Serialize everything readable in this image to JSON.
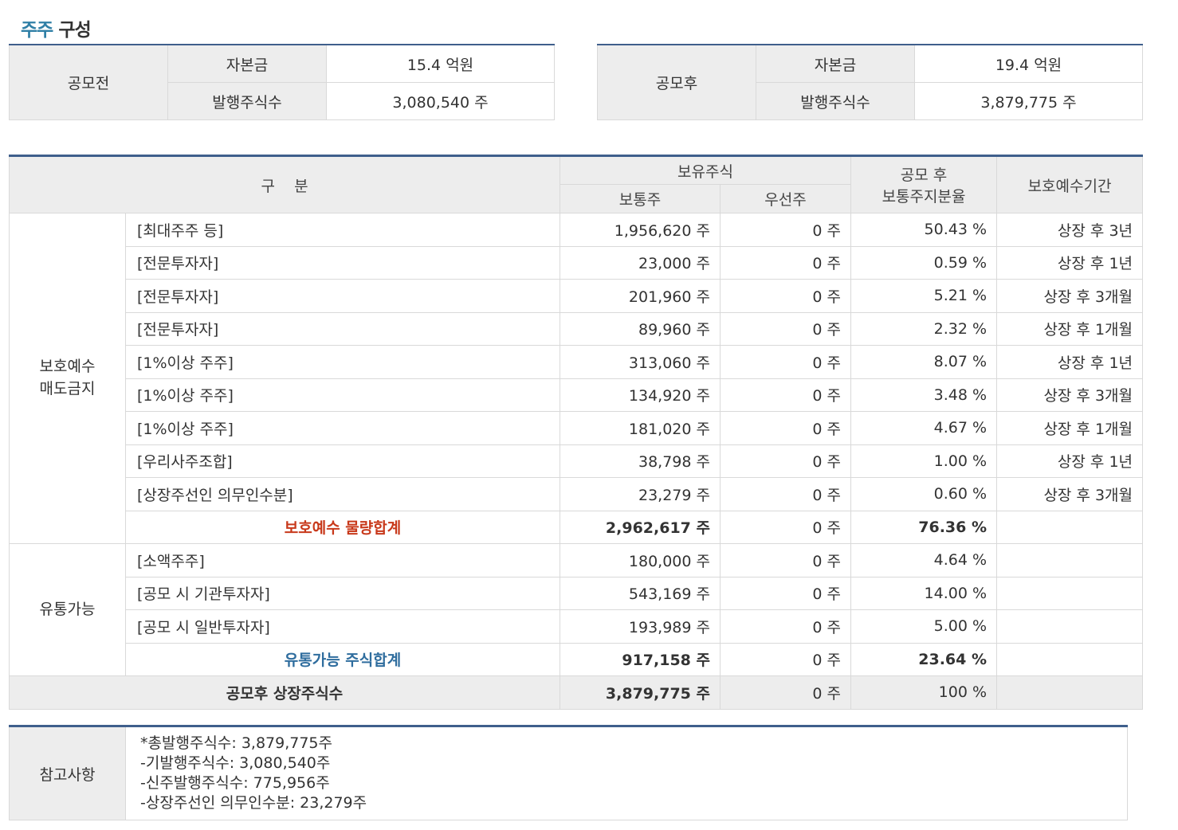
{
  "title": {
    "accent": "주주",
    "rest": " 구성"
  },
  "pre_offering": {
    "label": "공모전",
    "capital_label": "자본금",
    "capital_value": "15.4 억원",
    "shares_label": "발행주식수",
    "shares_value": "3,080,540 주"
  },
  "post_offering": {
    "label": "공모후",
    "capital_label": "자본금",
    "capital_value": "19.4 억원",
    "shares_label": "발행주식수",
    "shares_value": "3,879,775 주"
  },
  "main_table": {
    "headers": {
      "category": "구    분",
      "holdings": "보유주식",
      "common": "보통주",
      "preferred": "우선주",
      "ratio_line1": "공모 후",
      "ratio_line2": "보통주지분율",
      "lockup": "보호예수기간"
    },
    "lockup_group": {
      "label_line1": "보호예수",
      "label_line2": "매도금지",
      "rows": [
        {
          "name": "[최대주주 등]",
          "common": "1,956,620 주",
          "preferred": "0 주",
          "ratio": "50.43 %",
          "period": "상장 후 3년"
        },
        {
          "name": "[전문투자자]",
          "common": "23,000 주",
          "preferred": "0 주",
          "ratio": "0.59 %",
          "period": "상장 후 1년"
        },
        {
          "name": "[전문투자자]",
          "common": "201,960 주",
          "preferred": "0 주",
          "ratio": "5.21 %",
          "period": "상장 후 3개월"
        },
        {
          "name": "[전문투자자]",
          "common": "89,960 주",
          "preferred": "0 주",
          "ratio": "2.32 %",
          "period": "상장 후 1개월"
        },
        {
          "name": "[1%이상 주주]",
          "common": "313,060 주",
          "preferred": "0 주",
          "ratio": "8.07 %",
          "period": "상장 후 1년"
        },
        {
          "name": "[1%이상 주주]",
          "common": "134,920 주",
          "preferred": "0 주",
          "ratio": "3.48 %",
          "period": "상장 후 3개월"
        },
        {
          "name": "[1%이상 주주]",
          "common": "181,020 주",
          "preferred": "0 주",
          "ratio": "4.67 %",
          "period": "상장 후 1개월"
        },
        {
          "name": "[우리사주조합]",
          "common": "38,798 주",
          "preferred": "0 주",
          "ratio": "1.00 %",
          "period": "상장 후 1년"
        },
        {
          "name": "[상장주선인 의무인수분]",
          "common": "23,279 주",
          "preferred": "0 주",
          "ratio": "0.60 %",
          "period": "상장 후 3개월"
        }
      ],
      "subtotal": {
        "name": "보호예수 물량합계",
        "common": "2,962,617 주",
        "preferred": "0 주",
        "ratio": "76.36 %"
      }
    },
    "tradable_group": {
      "label": "유통가능",
      "rows": [
        {
          "name": "[소액주주]",
          "common": "180,000 주",
          "preferred": "0 주",
          "ratio": "4.64 %"
        },
        {
          "name": "[공모 시 기관투자자]",
          "common": "543,169 주",
          "preferred": "0 주",
          "ratio": "14.00 %"
        },
        {
          "name": "[공모 시 일반투자자]",
          "common": "193,989 주",
          "preferred": "0 주",
          "ratio": "5.00 %"
        }
      ],
      "subtotal": {
        "name": "유통가능 주식합계",
        "common": "917,158 주",
        "preferred": "0 주",
        "ratio": "23.64 %"
      }
    },
    "total": {
      "name": "공모후 상장주식수",
      "common": "3,879,775 주",
      "preferred": "0 주",
      "ratio": "100 %"
    }
  },
  "notes": {
    "label": "참고사항",
    "lines": [
      "*총발행주식수: 3,879,775주",
      "-기발행주식수: 3,080,540주",
      "-신주발행주식수: 775,956주",
      "-상장주선인 의무인수분: 23,279주"
    ]
  },
  "colors": {
    "accent_blue": "#2f7fa6",
    "header_border": "#3f5f8c",
    "subtotal_red": "#c8391b",
    "subtotal_blue": "#2f6d9e",
    "header_bg": "#ededed"
  }
}
